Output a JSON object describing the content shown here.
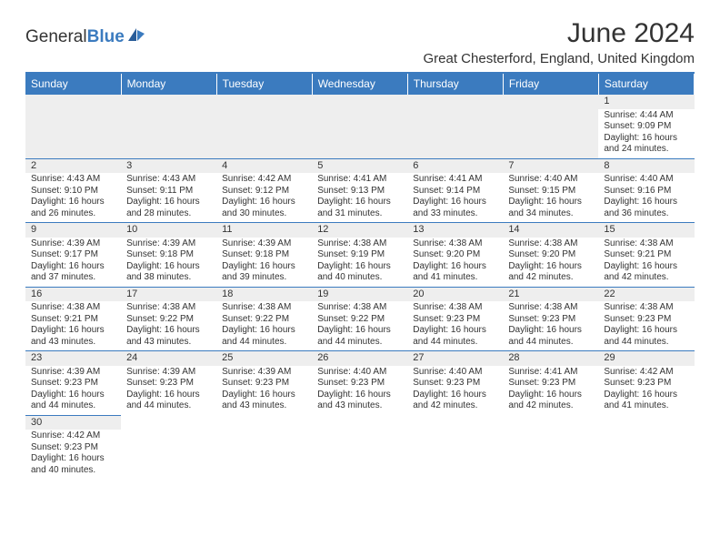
{
  "logo": {
    "text1": "General",
    "text2": "Blue"
  },
  "title": "June 2024",
  "location": "Great Chesterford, England, United Kingdom",
  "colors": {
    "accent": "#3b7bbf",
    "header_bg": "#3b7bbf",
    "header_text": "#ffffff",
    "daynum_bg": "#eeeeee",
    "border": "#3b7bbf"
  },
  "dayNames": [
    "Sunday",
    "Monday",
    "Tuesday",
    "Wednesday",
    "Thursday",
    "Friday",
    "Saturday"
  ],
  "weeks": [
    [
      null,
      null,
      null,
      null,
      null,
      null,
      {
        "n": "1",
        "sunrise": "4:44 AM",
        "sunset": "9:09 PM",
        "dlh": "16",
        "dlm": "24"
      }
    ],
    [
      {
        "n": "2",
        "sunrise": "4:43 AM",
        "sunset": "9:10 PM",
        "dlh": "16",
        "dlm": "26"
      },
      {
        "n": "3",
        "sunrise": "4:43 AM",
        "sunset": "9:11 PM",
        "dlh": "16",
        "dlm": "28"
      },
      {
        "n": "4",
        "sunrise": "4:42 AM",
        "sunset": "9:12 PM",
        "dlh": "16",
        "dlm": "30"
      },
      {
        "n": "5",
        "sunrise": "4:41 AM",
        "sunset": "9:13 PM",
        "dlh": "16",
        "dlm": "31"
      },
      {
        "n": "6",
        "sunrise": "4:41 AM",
        "sunset": "9:14 PM",
        "dlh": "16",
        "dlm": "33"
      },
      {
        "n": "7",
        "sunrise": "4:40 AM",
        "sunset": "9:15 PM",
        "dlh": "16",
        "dlm": "34"
      },
      {
        "n": "8",
        "sunrise": "4:40 AM",
        "sunset": "9:16 PM",
        "dlh": "16",
        "dlm": "36"
      }
    ],
    [
      {
        "n": "9",
        "sunrise": "4:39 AM",
        "sunset": "9:17 PM",
        "dlh": "16",
        "dlm": "37"
      },
      {
        "n": "10",
        "sunrise": "4:39 AM",
        "sunset": "9:18 PM",
        "dlh": "16",
        "dlm": "38"
      },
      {
        "n": "11",
        "sunrise": "4:39 AM",
        "sunset": "9:18 PM",
        "dlh": "16",
        "dlm": "39"
      },
      {
        "n": "12",
        "sunrise": "4:38 AM",
        "sunset": "9:19 PM",
        "dlh": "16",
        "dlm": "40"
      },
      {
        "n": "13",
        "sunrise": "4:38 AM",
        "sunset": "9:20 PM",
        "dlh": "16",
        "dlm": "41"
      },
      {
        "n": "14",
        "sunrise": "4:38 AM",
        "sunset": "9:20 PM",
        "dlh": "16",
        "dlm": "42"
      },
      {
        "n": "15",
        "sunrise": "4:38 AM",
        "sunset": "9:21 PM",
        "dlh": "16",
        "dlm": "42"
      }
    ],
    [
      {
        "n": "16",
        "sunrise": "4:38 AM",
        "sunset": "9:21 PM",
        "dlh": "16",
        "dlm": "43"
      },
      {
        "n": "17",
        "sunrise": "4:38 AM",
        "sunset": "9:22 PM",
        "dlh": "16",
        "dlm": "43"
      },
      {
        "n": "18",
        "sunrise": "4:38 AM",
        "sunset": "9:22 PM",
        "dlh": "16",
        "dlm": "44"
      },
      {
        "n": "19",
        "sunrise": "4:38 AM",
        "sunset": "9:22 PM",
        "dlh": "16",
        "dlm": "44"
      },
      {
        "n": "20",
        "sunrise": "4:38 AM",
        "sunset": "9:23 PM",
        "dlh": "16",
        "dlm": "44"
      },
      {
        "n": "21",
        "sunrise": "4:38 AM",
        "sunset": "9:23 PM",
        "dlh": "16",
        "dlm": "44"
      },
      {
        "n": "22",
        "sunrise": "4:38 AM",
        "sunset": "9:23 PM",
        "dlh": "16",
        "dlm": "44"
      }
    ],
    [
      {
        "n": "23",
        "sunrise": "4:39 AM",
        "sunset": "9:23 PM",
        "dlh": "16",
        "dlm": "44"
      },
      {
        "n": "24",
        "sunrise": "4:39 AM",
        "sunset": "9:23 PM",
        "dlh": "16",
        "dlm": "44"
      },
      {
        "n": "25",
        "sunrise": "4:39 AM",
        "sunset": "9:23 PM",
        "dlh": "16",
        "dlm": "43"
      },
      {
        "n": "26",
        "sunrise": "4:40 AM",
        "sunset": "9:23 PM",
        "dlh": "16",
        "dlm": "43"
      },
      {
        "n": "27",
        "sunrise": "4:40 AM",
        "sunset": "9:23 PM",
        "dlh": "16",
        "dlm": "42"
      },
      {
        "n": "28",
        "sunrise": "4:41 AM",
        "sunset": "9:23 PM",
        "dlh": "16",
        "dlm": "42"
      },
      {
        "n": "29",
        "sunrise": "4:42 AM",
        "sunset": "9:23 PM",
        "dlh": "16",
        "dlm": "41"
      }
    ],
    [
      {
        "n": "30",
        "sunrise": "4:42 AM",
        "sunset": "9:23 PM",
        "dlh": "16",
        "dlm": "40"
      },
      null,
      null,
      null,
      null,
      null,
      null
    ]
  ],
  "labels": {
    "sunrise": "Sunrise: ",
    "sunset": "Sunset: ",
    "daylight1": "Daylight: ",
    "daylight2": " hours",
    "daylight3": "and ",
    "daylight4": " minutes."
  }
}
